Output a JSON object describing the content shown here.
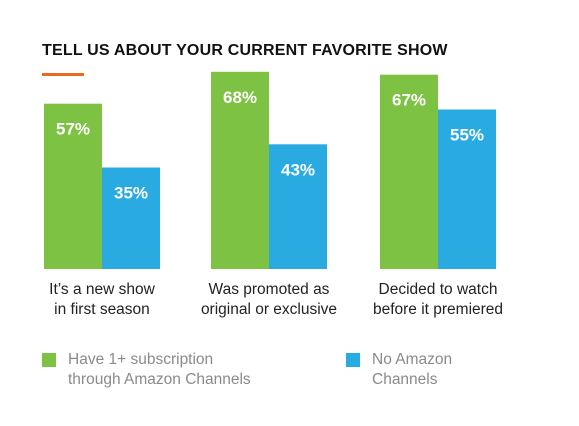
{
  "title": "TELL US ABOUT YOUR CURRENT FAVORITE SHOW",
  "colors": {
    "series1": "#7dc242",
    "series2": "#29abe2",
    "accent": "#ec6a1f"
  },
  "legend": {
    "series1": "Have 1+ subscription\nthrough Amazon Channels",
    "series2": "No Amazon\nChannels"
  },
  "chart_data": {
    "type": "bar",
    "title": "TELL US ABOUT YOUR CURRENT FAVORITE SHOW",
    "categories": [
      "It’s a new show\nin first season",
      "Was promoted as\noriginal or exclusive",
      "Decided to watch\nbefore it premiered"
    ],
    "series": [
      {
        "name": "Have 1+ subscription through Amazon Channels",
        "values": [
          57,
          68,
          67
        ],
        "labels": [
          "57%",
          "68%",
          "67%"
        ]
      },
      {
        "name": "No Amazon Channels",
        "values": [
          35,
          43,
          55
        ],
        "labels": [
          "35%",
          "43%",
          "55%"
        ]
      }
    ],
    "ylim": [
      0,
      100
    ],
    "grid": false,
    "legend_position": "bottom"
  }
}
